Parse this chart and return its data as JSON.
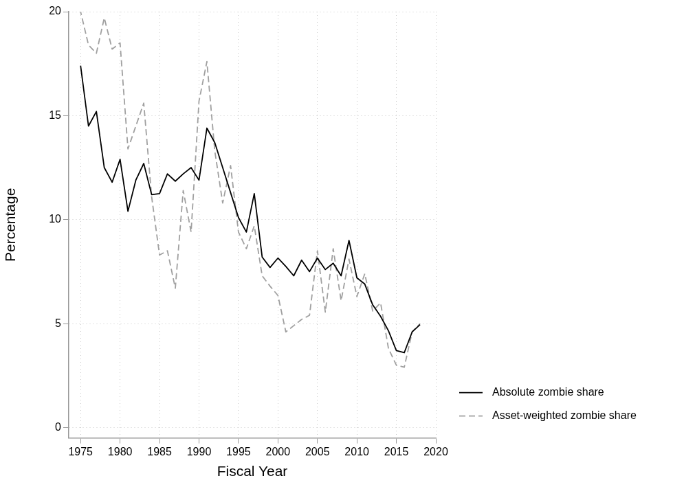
{
  "chart_data": {
    "type": "line",
    "xlabel": "Fiscal Year",
    "ylabel": "Percentage",
    "x": [
      1975,
      1976,
      1977,
      1978,
      1979,
      1980,
      1981,
      1982,
      1983,
      1984,
      1985,
      1986,
      1987,
      1988,
      1989,
      1990,
      1991,
      1992,
      1993,
      1994,
      1995,
      1996,
      1997,
      1998,
      1999,
      2000,
      2001,
      2002,
      2003,
      2004,
      2005,
      2006,
      2007,
      2008,
      2009,
      2010,
      2011,
      2012,
      2013,
      2014,
      2015,
      2016,
      2017,
      2018
    ],
    "series": [
      {
        "name": "Absolute zombie share",
        "color": "#000000",
        "line_style": "solid",
        "values": [
          17.4,
          14.5,
          15.2,
          12.5,
          11.8,
          12.9,
          10.4,
          11.9,
          12.7,
          11.2,
          11.25,
          12.2,
          11.85,
          12.2,
          12.5,
          11.9,
          14.4,
          13.7,
          12.5,
          11.3,
          10.1,
          9.4,
          11.25,
          8.2,
          7.7,
          8.15,
          7.75,
          7.3,
          8.05,
          7.5,
          8.15,
          7.6,
          7.9,
          7.3,
          9.0,
          7.2,
          6.9,
          5.9,
          5.35,
          4.65,
          3.7,
          3.6,
          4.6,
          4.95
        ]
      },
      {
        "name": "Asset-weighted zombie share",
        "color": "#a0a0a0",
        "line_style": "dashed",
        "values": [
          20.0,
          18.4,
          18.0,
          19.7,
          18.2,
          18.5,
          13.4,
          14.5,
          15.6,
          11.1,
          8.3,
          8.5,
          6.7,
          11.4,
          9.4,
          15.7,
          17.6,
          13.3,
          10.8,
          12.6,
          9.4,
          8.6,
          9.7,
          7.3,
          6.8,
          6.35,
          4.6,
          4.9,
          5.2,
          5.4,
          8.5,
          5.55,
          8.6,
          6.1,
          8.1,
          6.3,
          7.4,
          5.6,
          6.0,
          3.8,
          3.0,
          2.9,
          4.6,
          5.0
        ]
      }
    ],
    "xlim": [
      1973.5,
      2020
    ],
    "xticks": [
      1975,
      1980,
      1985,
      1990,
      1995,
      2000,
      2005,
      2010,
      2015,
      2020
    ],
    "ylim": [
      -0.5,
      20
    ],
    "yticks": [
      0,
      5,
      10,
      15,
      20
    ],
    "grid": true,
    "legend": "right",
    "marker": "none"
  }
}
